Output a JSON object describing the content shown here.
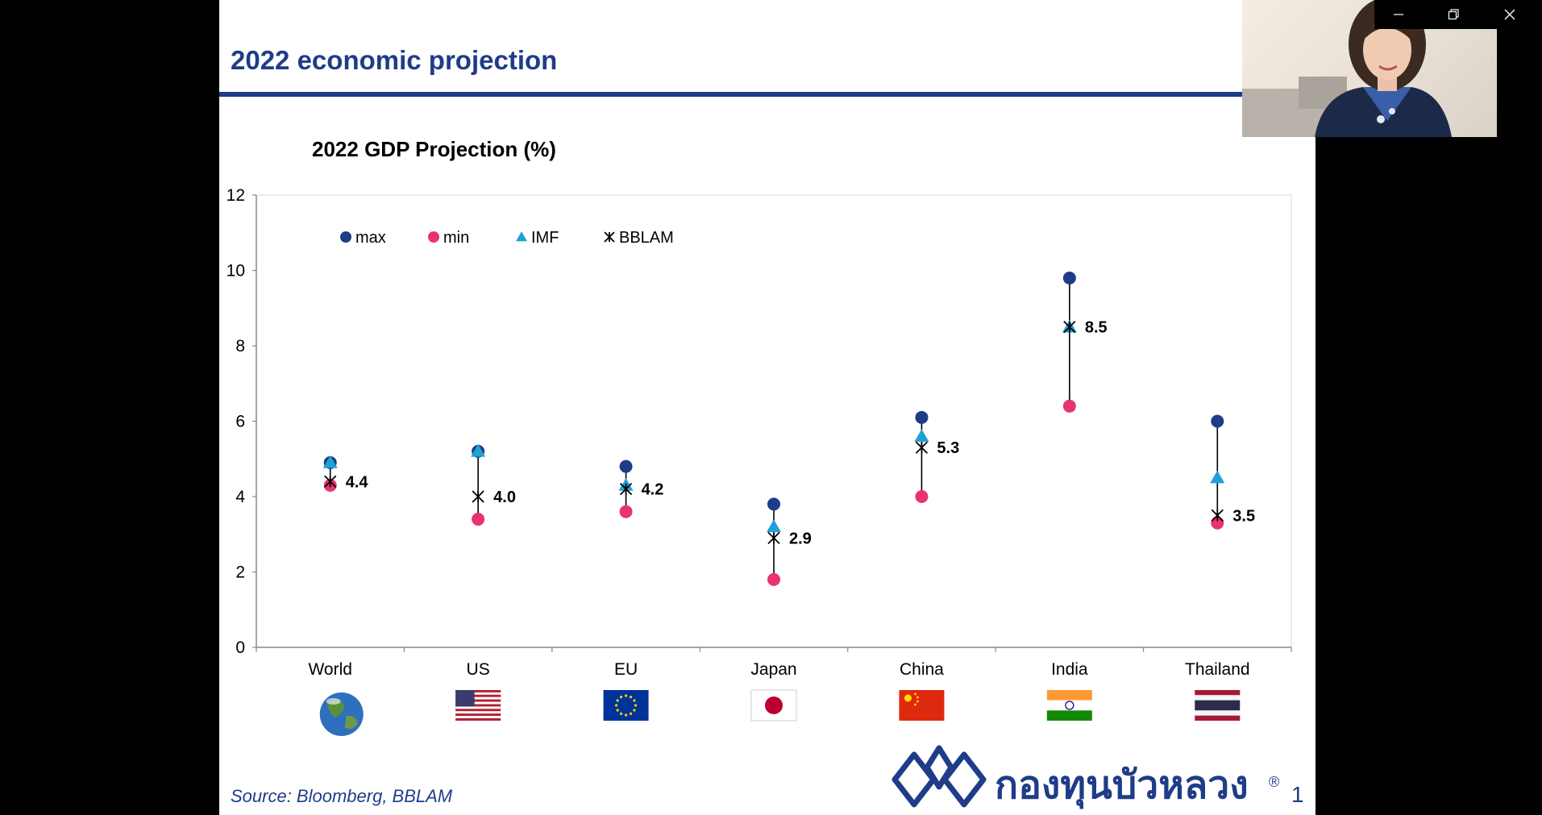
{
  "slide": {
    "title": "2022 economic projection",
    "source": "Source: Bloomberg, BBLAM",
    "page_number": "1",
    "logo_text": "กองทุนบัวหลวง",
    "logo_mark": "®"
  },
  "colors": {
    "brand_blue": "#1F3C88",
    "max": "#1F3C88",
    "min": "#E8336F",
    "imf": "#1FA1D6",
    "bblam": "#000000"
  },
  "chart_data": {
    "type": "scatter",
    "title": "2022 GDP Projection (%)",
    "categories": [
      "World",
      "US",
      "EU",
      "Japan",
      "China",
      "India",
      "Thailand"
    ],
    "flags": [
      "globe-icon",
      "us-flag-icon",
      "eu-flag-icon",
      "japan-flag-icon",
      "china-flag-icon",
      "india-flag-icon",
      "thailand-flag-icon"
    ],
    "ylim": [
      0,
      12
    ],
    "yticks": [
      0,
      2,
      4,
      6,
      8,
      10,
      12
    ],
    "grid": false,
    "legend_position": "top-left",
    "series": [
      {
        "name": "max",
        "marker": "circle",
        "values": [
          4.9,
          5.2,
          4.8,
          3.8,
          6.1,
          9.8,
          6.0
        ]
      },
      {
        "name": "min",
        "marker": "circle",
        "values": [
          4.3,
          3.4,
          3.6,
          1.8,
          4.0,
          6.4,
          3.3
        ]
      },
      {
        "name": "IMF",
        "marker": "triangle",
        "values": [
          4.9,
          5.2,
          4.3,
          3.2,
          5.6,
          8.5,
          4.5
        ]
      },
      {
        "name": "BBLAM",
        "marker": "star",
        "values": [
          4.4,
          4.0,
          4.2,
          2.9,
          5.3,
          8.5,
          3.5
        ]
      }
    ],
    "data_labels": [
      "4.4",
      "4.0",
      "4.2",
      "2.9",
      "5.3",
      "8.5",
      "3.5"
    ]
  },
  "window_controls": {
    "minimize": "minimize-icon",
    "restore": "restore-icon",
    "close": "close-icon"
  }
}
